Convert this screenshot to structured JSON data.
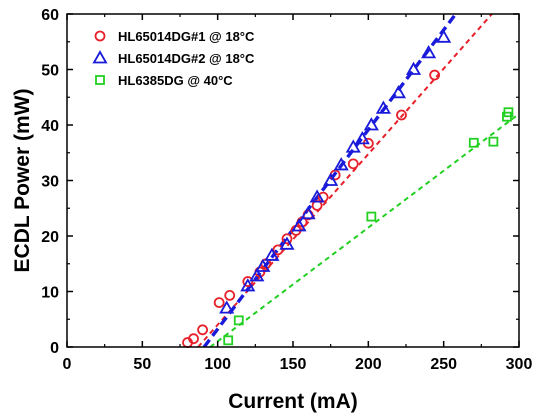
{
  "chart_data": {
    "type": "scatter",
    "xlabel": "Current (mA)",
    "ylabel": "ECDL Power (mW)",
    "xlim": [
      0,
      300
    ],
    "ylim": [
      0,
      60
    ],
    "xticks": [
      0,
      50,
      100,
      150,
      200,
      250,
      300
    ],
    "yticks": [
      0,
      10,
      20,
      30,
      40,
      50,
      60
    ],
    "grid": false,
    "legend_position": "top-left",
    "series": [
      {
        "name": "HL65014DG#1 @ 18°C",
        "marker": "circle",
        "color": "#e8202a",
        "x": [
          80,
          84,
          90,
          101,
          108,
          120,
          128,
          132,
          140,
          146,
          152,
          156,
          160,
          166,
          170,
          178,
          190,
          200,
          222,
          244
        ],
        "y": [
          0.8,
          1.5,
          3.1,
          8.0,
          9.3,
          11.8,
          13.5,
          15.0,
          17.5,
          19.5,
          21.0,
          22.5,
          23.8,
          25.5,
          27.0,
          31.0,
          33.0,
          36.7,
          41.8,
          49.0
        ]
      },
      {
        "name": "HL65014DG#2 @ 18°C",
        "marker": "triangle",
        "color": "#1a1adb",
        "x": [
          106,
          120,
          126,
          130,
          136,
          146,
          154,
          160,
          166,
          175,
          182,
          190,
          196,
          202,
          210,
          220,
          230,
          240,
          250
        ],
        "y": [
          7.0,
          11.0,
          12.8,
          14.5,
          16.5,
          18.5,
          21.8,
          24.0,
          27.0,
          30.0,
          32.8,
          36.0,
          37.5,
          40.0,
          43.0,
          45.8,
          50.0,
          53.0,
          55.8
        ]
      },
      {
        "name": "HL6385DG @ 40°C",
        "marker": "square",
        "color": "#22d022",
        "x": [
          107,
          114,
          202,
          270,
          283,
          292,
          293
        ],
        "y": [
          1.2,
          4.8,
          23.5,
          36.8,
          37.0,
          41.5,
          42.3
        ]
      }
    ],
    "fits": [
      {
        "series": "HL65014DG#1 @ 18°C",
        "color": "#e8202a",
        "dash": "5,4",
        "width": 2,
        "x": [
          87,
          282
        ],
        "y": [
          0,
          60
        ]
      },
      {
        "series": "HL65014DG#2 @ 18°C",
        "color": "#1a1adb",
        "dash": "9,5",
        "width": 3.4,
        "x": [
          91,
          258
        ],
        "y": [
          0,
          60
        ]
      },
      {
        "series": "HL6385DG @ 40°C",
        "color": "#22d022",
        "dash": "5,4",
        "width": 2,
        "x": [
          95,
          300
        ],
        "y": [
          0,
          42
        ]
      }
    ]
  }
}
